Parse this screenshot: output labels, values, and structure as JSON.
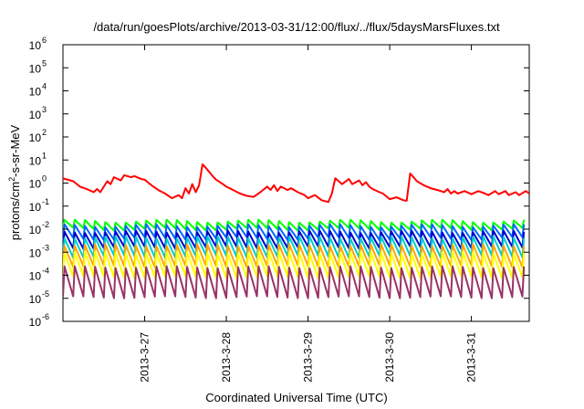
{
  "chart_data": {
    "type": "line",
    "title": "/data/run/goesPlots/archive/2013-03-31/12:00/flux/../flux/5daysMarsFluxes.txt",
    "xlabel": "Coordinated Universal Time (UTC)",
    "ylabel": "protons/cm²-s-sr-MeV",
    "ylabel_parts": {
      "pre": "protons/cm",
      "sup": "2",
      "post": "-s-sr-MeV"
    },
    "yscale": "log",
    "ylim": [
      1e-06,
      1000000.0
    ],
    "xlim": [
      "2013-03-26T00:00",
      "2013-03-31T17:00"
    ],
    "grid": false,
    "legend": "none",
    "y_ticks": [
      {
        "value": 1e-06,
        "base": "10",
        "exp": "-6"
      },
      {
        "value": 1e-05,
        "base": "10",
        "exp": "-5"
      },
      {
        "value": 0.0001,
        "base": "10",
        "exp": "-4"
      },
      {
        "value": 0.001,
        "base": "10",
        "exp": "-3"
      },
      {
        "value": 0.01,
        "base": "10",
        "exp": "-2"
      },
      {
        "value": 0.1,
        "base": "10",
        "exp": "-1"
      },
      {
        "value": 1.0,
        "base": "10",
        "exp": "0"
      },
      {
        "value": 10.0,
        "base": "10",
        "exp": "1"
      },
      {
        "value": 100.0,
        "base": "10",
        "exp": "2"
      },
      {
        "value": 1000.0,
        "base": "10",
        "exp": "3"
      },
      {
        "value": 10000.0,
        "base": "10",
        "exp": "4"
      },
      {
        "value": 100000.0,
        "base": "10",
        "exp": "5"
      },
      {
        "value": 1000000.0,
        "base": "10",
        "exp": "6"
      }
    ],
    "x_ticks": [
      {
        "date": "2013-03-27T00:00",
        "label": "2013-3-27"
      },
      {
        "date": "2013-03-28T00:00",
        "label": "2013-3-28"
      },
      {
        "date": "2013-03-29T00:00",
        "label": "2013-3-29"
      },
      {
        "date": "2013-03-30T00:00",
        "label": "2013-3-30"
      },
      {
        "date": "2013-03-31T00:00",
        "label": "2013-3-31"
      }
    ],
    "series": [
      {
        "color": "#ff0000",
        "x": [
          "2013-03-26T00:00",
          "2013-03-26T03:00",
          "2013-03-26T05:00",
          "2013-03-26T07:00",
          "2013-03-26T09:00",
          "2013-03-26T10:00",
          "2013-03-26T11:00",
          "2013-03-26T13:00",
          "2013-03-26T14:00",
          "2013-03-26T15:00",
          "2013-03-26T17:00",
          "2013-03-26T18:00",
          "2013-03-26T20:00",
          "2013-03-26T21:00",
          "2013-03-26T23:00",
          "2013-03-27T00:00",
          "2013-03-27T02:00",
          "2013-03-27T04:00",
          "2013-03-27T06:00",
          "2013-03-27T08:00",
          "2013-03-27T10:00",
          "2013-03-27T11:00",
          "2013-03-27T12:00",
          "2013-03-27T13:00",
          "2013-03-27T14:00",
          "2013-03-27T15:00",
          "2013-03-27T16:00",
          "2013-03-27T17:00",
          "2013-03-27T18:00",
          "2013-03-27T19:00",
          "2013-03-27T20:00",
          "2013-03-27T21:00",
          "2013-03-27T23:00",
          "2013-03-28T00:00",
          "2013-03-28T02:00",
          "2013-03-28T04:00",
          "2013-03-28T06:00",
          "2013-03-28T08:00",
          "2013-03-28T10:00",
          "2013-03-28T12:00",
          "2013-03-28T13:00",
          "2013-03-28T14:00",
          "2013-03-28T15:00",
          "2013-03-28T16:00",
          "2013-03-28T18:00",
          "2013-03-28T19:00",
          "2013-03-28T21:00",
          "2013-03-28T23:00",
          "2013-03-29T00:00",
          "2013-03-29T02:00",
          "2013-03-29T04:00",
          "2013-03-29T06:00",
          "2013-03-29T07:00",
          "2013-03-29T08:00",
          "2013-03-29T10:00",
          "2013-03-29T12:00",
          "2013-03-29T13:00",
          "2013-03-29T15:00",
          "2013-03-29T16:00",
          "2013-03-29T17:00",
          "2013-03-29T18:00",
          "2013-03-29T19:00",
          "2013-03-29T21:00",
          "2013-03-29T22:00",
          "2013-03-30T00:00",
          "2013-03-30T02:00",
          "2013-03-30T04:00",
          "2013-03-30T05:00",
          "2013-03-30T06:00",
          "2013-03-30T07:00",
          "2013-03-30T08:00",
          "2013-03-30T10:00",
          "2013-03-30T12:00",
          "2013-03-30T14:00",
          "2013-03-30T16:00",
          "2013-03-30T17:00",
          "2013-03-30T18:00",
          "2013-03-30T19:00",
          "2013-03-30T20:00",
          "2013-03-30T22:00",
          "2013-03-31T00:00",
          "2013-03-31T02:00",
          "2013-03-31T04:00",
          "2013-03-31T05:00",
          "2013-03-31T07:00",
          "2013-03-31T08:00",
          "2013-03-31T10:00",
          "2013-03-31T11:00",
          "2013-03-31T13:00",
          "2013-03-31T14:00",
          "2013-03-31T16:00",
          "2013-03-31T17:00"
        ],
        "y": [
          1.6,
          1.2,
          0.7,
          0.55,
          0.4,
          0.55,
          0.4,
          1.2,
          0.9,
          1.8,
          1.3,
          2.2,
          1.8,
          2.0,
          1.5,
          1.4,
          0.8,
          0.5,
          0.35,
          0.22,
          0.3,
          0.22,
          0.6,
          0.35,
          0.9,
          0.4,
          0.8,
          6.5,
          4.5,
          3.0,
          2.0,
          1.4,
          0.9,
          0.7,
          0.5,
          0.35,
          0.28,
          0.25,
          0.4,
          0.7,
          0.5,
          0.8,
          0.45,
          0.7,
          0.5,
          0.6,
          0.4,
          0.3,
          0.22,
          0.3,
          0.18,
          0.15,
          0.35,
          1.6,
          0.9,
          1.5,
          0.9,
          1.3,
          0.8,
          1.1,
          0.7,
          0.55,
          0.4,
          0.35,
          0.2,
          0.24,
          0.18,
          0.17,
          2.6,
          1.8,
          1.2,
          0.8,
          0.6,
          0.5,
          0.4,
          0.55,
          0.35,
          0.45,
          0.35,
          0.45,
          0.33,
          0.45,
          0.35,
          0.3,
          0.45,
          0.33,
          0.45,
          0.3,
          0.4,
          0.3,
          0.45,
          0.35
        ]
      },
      {
        "color": "#00ff00",
        "base": 0.015,
        "amp": 1.5,
        "drift": 0.15
      },
      {
        "color": "#0066ff",
        "base": 0.0075,
        "amp": 1.9,
        "drift": 0.15
      },
      {
        "color": "#0000cc",
        "base": 0.0035,
        "amp": 2.2,
        "drift": 0.12
      },
      {
        "color": "#00cccc",
        "base": 0.0017,
        "amp": 2.6,
        "drift": 0.12
      },
      {
        "color": "#ffa500",
        "base": 0.0007,
        "amp": 2.9,
        "drift": 0.1
      },
      {
        "color": "#ffff00",
        "base": 0.00028,
        "amp": 3.4,
        "drift": 0.1
      },
      {
        "color": "#993366",
        "base": 5e-05,
        "amp": 4.5,
        "drift": 0.1
      }
    ],
    "sawtooth_period_hours": 3
  }
}
